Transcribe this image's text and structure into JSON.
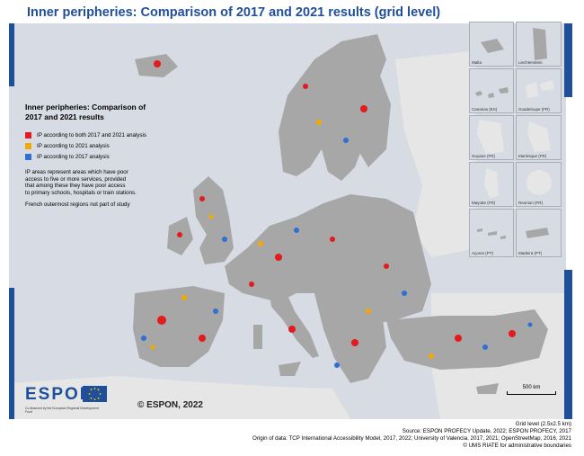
{
  "title": "Inner peripheries: Comparison of 2017 and 2021 results (grid level)",
  "legend": {
    "title_line1": "Inner peripheries: Comparison of",
    "title_line2": "2017 and 2021 results",
    "items": [
      {
        "label": "IP according to both 2017 and 2021 analysis",
        "color": "#e41a1c"
      },
      {
        "label": "IP according to 2021 analysis",
        "color": "#f2a900"
      },
      {
        "label": "IP according to 2017 analysis",
        "color": "#2f6fd6"
      }
    ],
    "note_lines": [
      "IP areas represent areas which have poor",
      "access to five or more services, provided",
      "that among these they have poor access",
      "to primary schools, hospitals or train stations."
    ],
    "note2": "French outermost regions not part of study"
  },
  "insets": [
    {
      "label": "Malta"
    },
    {
      "label": "Liechtenstein"
    },
    {
      "label": "Canarias (ES)"
    },
    {
      "label": "Guadeloupe (FR)"
    },
    {
      "label": "Guyane (FR)"
    },
    {
      "label": "Martinique (FR)"
    },
    {
      "label": "Mayotte (FR)"
    },
    {
      "label": "Reunion (FR)"
    },
    {
      "label": "Açores (PT)"
    },
    {
      "label": "Madeira (PT)"
    }
  ],
  "logo": {
    "name": "ESPON",
    "subtitle": "Co-financed by the European Regional Development Fund"
  },
  "copyright": "© ESPON, 2022",
  "scale_label": "500 km",
  "footer": {
    "line1": "Grid level (2.5x2.5 km)",
    "line2": "Source: ESPON PROFECY Update, 2022; ESPON PROFECY, 2017",
    "line3": "Origin of data: TCP International Accessibility Model, 2017, 2022; University of Valencia, 2017, 2021; OpenStreetMap, 2016, 2021",
    "line4": "© UMS RIATE for administrative boundaries"
  },
  "colors": {
    "land": "#a7a7a7",
    "sea": "#d7dbe3",
    "non_study": "#e6e6e6",
    "border": "#ffffff",
    "accent": "#1f4f99"
  }
}
